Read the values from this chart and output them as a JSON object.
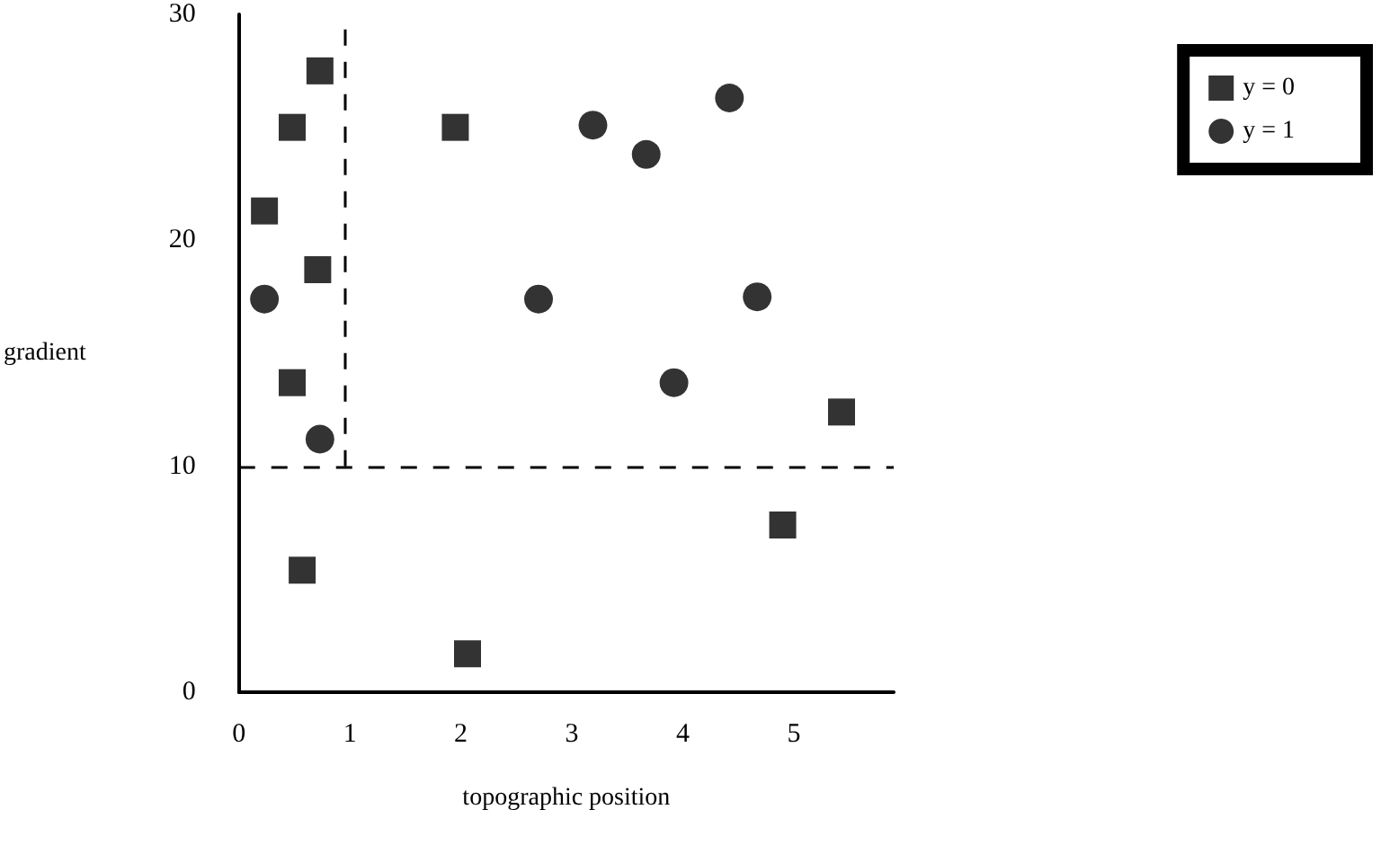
{
  "chart_data": {
    "type": "scatter",
    "xlabel": "topographic position",
    "ylabel": "gradient",
    "xlim": [
      0,
      5.9
    ],
    "xticks": [
      0,
      1,
      2,
      3,
      4,
      5
    ],
    "ylim": [
      0,
      30
    ],
    "yticks": [
      0,
      10,
      20,
      30
    ],
    "grid": false,
    "legend": "top right",
    "series": [
      {
        "name": "y = 0",
        "color": "#000000",
        "marker": "square",
        "x": [
          0.23,
          0.48,
          0.73,
          0.71,
          0.48,
          0.57,
          1.95,
          2.06,
          4.9,
          5.43
        ],
        "values": [
          21.3,
          25.0,
          27.5,
          18.7,
          13.7,
          5.4,
          25.0,
          1.7,
          7.4,
          12.4
        ]
      },
      {
        "name": "y = 1",
        "color": "#000000",
        "marker": "circle",
        "x": [
          0.23,
          0.73,
          2.7,
          3.19,
          3.67,
          4.42,
          4.67,
          3.92
        ],
        "values": [
          17.4,
          11.2,
          17.4,
          25.1,
          23.8,
          26.3,
          17.5,
          13.7
        ]
      }
    ],
    "ref_lines": [
      {
        "axis": "y",
        "value": 10,
        "line_style": "dashed",
        "color": "#000000"
      },
      {
        "axis": "x",
        "value": 0.95,
        "line_style": "dashed",
        "color": "#000000"
      }
    ]
  }
}
